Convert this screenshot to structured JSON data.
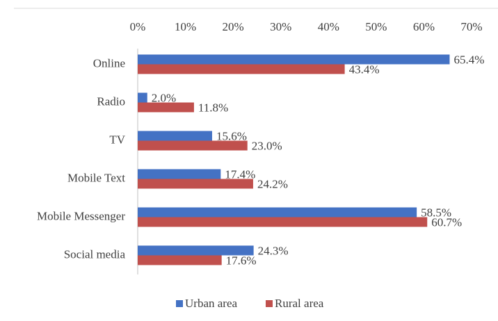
{
  "chart_data": {
    "type": "bar",
    "orientation": "horizontal",
    "categories": [
      "Online",
      "Radio",
      "TV",
      "Mobile Text",
      "Mobile Messenger",
      "Social media"
    ],
    "series": [
      {
        "name": "Urban area",
        "color": "#4472c4",
        "values": [
          65.4,
          2.0,
          15.6,
          17.4,
          58.5,
          24.3
        ],
        "value_labels": [
          "65.4%",
          "2.0%",
          "15.6%",
          "17.4%",
          "58.5%",
          "24.3%"
        ]
      },
      {
        "name": "Rural area",
        "color": "#c0504d",
        "values": [
          43.4,
          11.8,
          23.0,
          24.2,
          60.7,
          17.6
        ],
        "value_labels": [
          "43.4%",
          "11.8%",
          "23.0%",
          "24.2%",
          "60.7%",
          "17.6%"
        ]
      }
    ],
    "xlim": [
      0,
      70
    ],
    "xticks": [
      {
        "value": 0,
        "label": "0%"
      },
      {
        "value": 10,
        "label": "10%"
      },
      {
        "value": 20,
        "label": "20%"
      },
      {
        "value": 30,
        "label": "30%"
      },
      {
        "value": 40,
        "label": "40%"
      },
      {
        "value": 50,
        "label": "50%"
      },
      {
        "value": 60,
        "label": "60%"
      },
      {
        "value": 70,
        "label": "70%"
      }
    ],
    "legend": "bottom"
  }
}
